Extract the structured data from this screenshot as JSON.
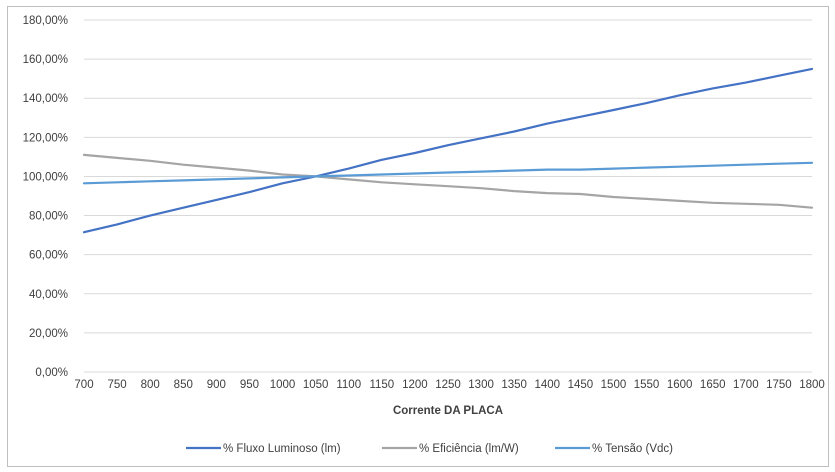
{
  "chart_data": {
    "type": "line",
    "xlabel": "Corrente  DA PLACA",
    "ylabel": "",
    "ylim": [
      0,
      180
    ],
    "y_tick_labels": [
      "0,00%",
      "20,00%",
      "40,00%",
      "60,00%",
      "80,00%",
      "100,00%",
      "120,00%",
      "140,00%",
      "160,00%",
      "180,00%"
    ],
    "x": [
      700,
      750,
      800,
      850,
      900,
      950,
      1000,
      1050,
      1100,
      1150,
      1200,
      1250,
      1300,
      1350,
      1400,
      1450,
      1500,
      1550,
      1600,
      1650,
      1700,
      1750,
      1800
    ],
    "grid": "horizontal",
    "legend_position": "bottom",
    "series": [
      {
        "name": "% Fluxo Luminoso (lm)",
        "color": "#4472c4",
        "values": [
          71.5,
          75.5,
          80,
          84,
          88,
          92,
          96.5,
          100,
          104,
          108.5,
          112,
          116,
          119.5,
          123,
          127,
          130.5,
          134,
          137.5,
          141.5,
          145,
          148,
          151.5,
          155
        ]
      },
      {
        "name": "% Eficiência (lm/W)",
        "color": "#a5a5a5",
        "values": [
          111,
          109.5,
          108,
          106,
          104.5,
          103,
          101,
          100,
          98.5,
          97,
          96,
          95,
          94,
          92.5,
          91.5,
          91,
          89.5,
          88.5,
          87.5,
          86.5,
          86,
          85.5,
          84
        ]
      },
      {
        "name": "% Tensão (Vdc)",
        "color": "#5b9bd5",
        "values": [
          96.5,
          97,
          97.5,
          98,
          98.5,
          99,
          99.5,
          100,
          100.5,
          101,
          101.5,
          102,
          102.5,
          103,
          103.5,
          103.5,
          104,
          104.5,
          105,
          105.5,
          106,
          106.5,
          107
        ]
      }
    ]
  }
}
